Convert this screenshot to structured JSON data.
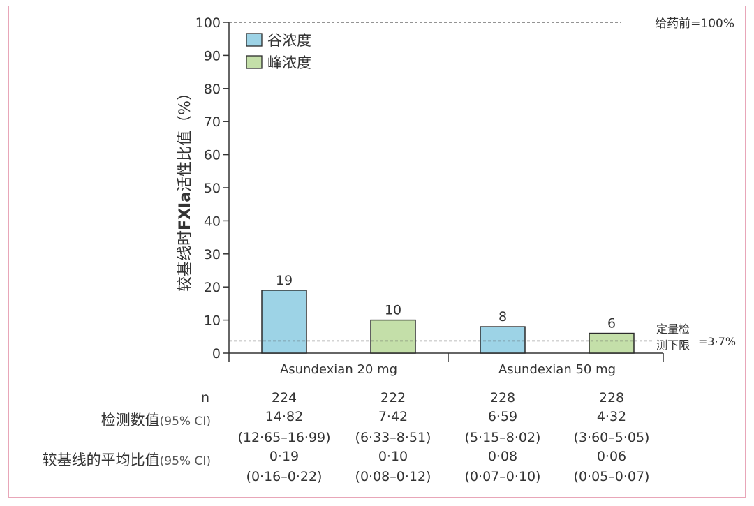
{
  "chart_data": {
    "type": "bar",
    "ylabel_main": "较基线时",
    "ylabel_bold": "FXIa",
    "ylabel_tail": "活性比值（%）",
    "ylim": [
      0,
      100
    ],
    "yticks": [
      "0",
      "10",
      "20",
      "30",
      "40",
      "50",
      "60",
      "70",
      "80",
      "90",
      "100"
    ],
    "groups": [
      {
        "label": "Asundexian 20 mg"
      },
      {
        "label": "Asundexian 50 mg"
      }
    ],
    "series": [
      {
        "name": "谷浓度",
        "color": "#9dd3e6"
      },
      {
        "name": "峰浓度",
        "color": "#c4dfa9"
      }
    ],
    "bars": [
      {
        "group": 0,
        "series": 0,
        "value": 19,
        "label": "19"
      },
      {
        "group": 0,
        "series": 1,
        "value": 10,
        "label": "10"
      },
      {
        "group": 1,
        "series": 0,
        "value": 8,
        "label": "8"
      },
      {
        "group": 1,
        "series": 1,
        "value": 6,
        "label": "6"
      }
    ],
    "ref_top": {
      "value": 100,
      "label": "给药前=100%"
    },
    "ref_lloq": {
      "value": 3.7,
      "label_line1": "定量检",
      "label_line2": "测下限",
      "label_value": "=3·7%"
    }
  },
  "table": {
    "n_label": "n",
    "measured_label": "检测数值",
    "measured_ci": "(95% CI)",
    "ratio_label": "较基线的平均比值",
    "ratio_ci": "(95% CI)",
    "columns": [
      {
        "n": "224",
        "measured": "14·82",
        "measured_ci": "(12·65–16·99)",
        "ratio": "0·19",
        "ratio_ci": "(0·16–0·22)"
      },
      {
        "n": "222",
        "measured": "7·42",
        "measured_ci": "(6·33–8·51)",
        "ratio": "0·10",
        "ratio_ci": "(0·08–0·12)"
      },
      {
        "n": "228",
        "measured": "6·59",
        "measured_ci": "(5·15–8·02)",
        "ratio": "0·08",
        "ratio_ci": "(0·07–0·10)"
      },
      {
        "n": "228",
        "measured": "4·32",
        "measured_ci": "(3·60–5·05)",
        "ratio": "0·06",
        "ratio_ci": "(0·05–0·07)"
      }
    ]
  }
}
